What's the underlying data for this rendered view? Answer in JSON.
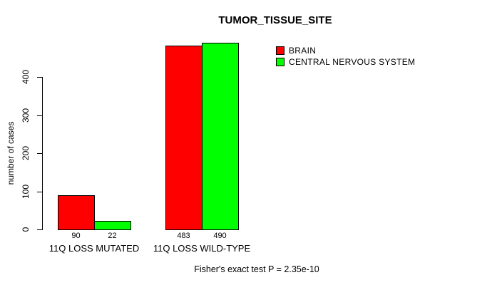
{
  "chart_data": {
    "type": "bar",
    "title": "TUMOR_TISSUE_SITE",
    "ylabel": "number of cases",
    "xlabel": "",
    "categories": [
      "11Q LOSS MUTATED",
      "11Q LOSS WILD-TYPE"
    ],
    "series": [
      {
        "name": "BRAIN",
        "color": "#ff0000",
        "values": [
          90,
          483
        ]
      },
      {
        "name": "CENTRAL NERVOUS SYSTEM",
        "color": "#00ff00",
        "values": [
          22,
          490
        ]
      }
    ],
    "yticks": [
      0,
      100,
      200,
      300,
      400
    ],
    "ylim": [
      0,
      490
    ],
    "grid": false,
    "legend_position": "top-right",
    "bar_border_color": "#000000",
    "show_value_labels": true,
    "annotation": "Fisher's exact test P = 2.35e-10"
  }
}
